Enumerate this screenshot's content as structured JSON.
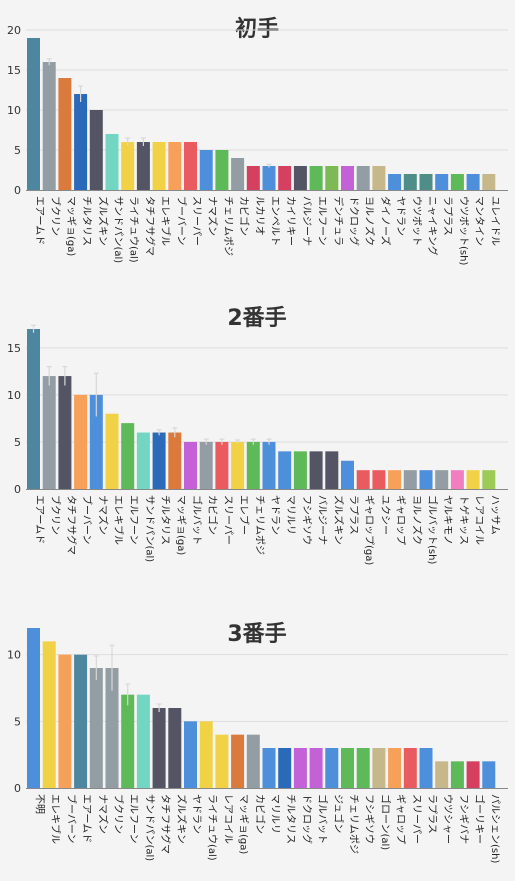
{
  "colors": {
    "teal": "#4e86a0",
    "gray": "#939da4",
    "orange": "#db7a3d",
    "blue": "#2b6ab8",
    "darkgray": "#535564",
    "mint": "#72d6c2",
    "yellow": "#f1d246",
    "peach": "#f7a05a",
    "red": "#ea5b5f",
    "skyblue": "#4d8fdb",
    "green": "#5eb958",
    "crimson": "#d53f60",
    "purple": "#c362d6",
    "khaki": "#c6b88a",
    "tealgreen": "#4f8e88",
    "pink": "#f27ec2",
    "lightgreen": "#9ccc57",
    "olive": "#7db954",
    "darkteal": "#3c7f99"
  },
  "chart_data": [
    {
      "type": "bar",
      "title": "初手",
      "ylim": [
        0,
        20
      ],
      "yticks": [
        0,
        5,
        10,
        15,
        20
      ],
      "categories": [
        "エアームド",
        "ブクリン",
        "マッギョ(ga)",
        "チルタリス",
        "ズルズキン",
        "サンドパン(al)",
        "ライチュウ(al)",
        "タチフサグマ",
        "エレキブル",
        "ブーバーン",
        "スリーパー",
        "ナマズン",
        "チェリムポジ",
        "カビゴン",
        "ルカリオ",
        "エンペルト",
        "カイリキー",
        "バルジーナ",
        "エルフーン",
        "デンチュラ",
        "ドクロッグ",
        "ヨルノズク",
        "ダイノーズ",
        "ヤドラン",
        "ウツボット",
        "ニャイキング",
        "ラプラス",
        "ウツボット(sh)",
        "マンタイン",
        "ユレイドル"
      ],
      "values": [
        19,
        16,
        14,
        12,
        10,
        7,
        6,
        6,
        6,
        6,
        6,
        5,
        5,
        4,
        3,
        3,
        3,
        3,
        3,
        3,
        3,
        3,
        3,
        2,
        2,
        2,
        2,
        2,
        2,
        2
      ],
      "errors": [
        0,
        0.4,
        0,
        1,
        0,
        0,
        0.5,
        0.5,
        0,
        0,
        0,
        0,
        0,
        0,
        0,
        0.2,
        0,
        0,
        0,
        0,
        0,
        0,
        0,
        0,
        0,
        0,
        0,
        0,
        0,
        0
      ],
      "colors": [
        "teal",
        "gray",
        "orange",
        "blue",
        "darkgray",
        "mint",
        "yellow",
        "darkgray",
        "yellow",
        "peach",
        "red",
        "skyblue",
        "green",
        "gray",
        "crimson",
        "skyblue",
        "crimson",
        "darkgray",
        "green",
        "olive",
        "purple",
        "gray",
        "khaki",
        "skyblue",
        "tealgreen",
        "tealgreen",
        "skyblue",
        "green",
        "skyblue",
        "khaki"
      ]
    },
    {
      "type": "bar",
      "title": "2番手",
      "ylim": [
        0,
        17
      ],
      "yticks": [
        0,
        5,
        10,
        15
      ],
      "categories": [
        "エアームド",
        "ブクリン",
        "タチフサグマ",
        "ブーバーン",
        "ナマズン",
        "エレキブル",
        "エルフーン",
        "サンドパン(al)",
        "チルタリス",
        "マッギョ(ga)",
        "ゴルバット",
        "カビゴン",
        "スリーパー",
        "エレブー",
        "チェリムポジ",
        "ヤドラン",
        "マリルリ",
        "フシギソウ",
        "バルジーナ",
        "ズルズキン",
        "ラプラス",
        "ギャロップ(ga)",
        "ユクシー",
        "ギャロップ",
        "ヨルノズク",
        "ゴルバット(sh)",
        "ヤルキモノ",
        "トゲキッス",
        "レアコイル",
        "ハッサム"
      ],
      "values": [
        17,
        12,
        12,
        10,
        10,
        8,
        7,
        6,
        6,
        6,
        5,
        5,
        5,
        5,
        5,
        5,
        4,
        4,
        4,
        4,
        3,
        2,
        2,
        2,
        2,
        2,
        2,
        2,
        2,
        2
      ],
      "errors": [
        0.4,
        1,
        1,
        0,
        2.3,
        0,
        0,
        0,
        0.3,
        0.5,
        0,
        0.3,
        0.3,
        0.2,
        0.3,
        0.3,
        0,
        0,
        0,
        0,
        0,
        0,
        0,
        0,
        0,
        0,
        0,
        0,
        0,
        0
      ],
      "colors": [
        "teal",
        "gray",
        "darkgray",
        "peach",
        "skyblue",
        "yellow",
        "green",
        "mint",
        "blue",
        "orange",
        "purple",
        "gray",
        "red",
        "yellow",
        "green",
        "skyblue",
        "skyblue",
        "green",
        "darkgray",
        "darkgray",
        "skyblue",
        "red",
        "red",
        "peach",
        "gray",
        "skyblue",
        "gray",
        "pink",
        "yellow",
        "lightgreen"
      ]
    },
    {
      "type": "bar",
      "title": "3番手",
      "ylim": [
        0,
        12
      ],
      "yticks": [
        0,
        5,
        10
      ],
      "categories": [
        "不明",
        "エレキブル",
        "ブーバーン",
        "エアームド",
        "ナマズン",
        "ブクリン",
        "エルフーン",
        "サンドパン(al)",
        "タチフサグマ",
        "ズルズキン",
        "ヤドラン",
        "ライチュウ(al)",
        "レアコイル",
        "マッギョ(ga)",
        "カビゴン",
        "マリルリ",
        "チルタリス",
        "ドクロッグ",
        "ゴルバット",
        "ジュゴン",
        "チェリムポジ",
        "フシギソウ",
        "ゴローン(al)",
        "ギャロップ",
        "スリーパー",
        "ラプラス",
        "ウツシャー",
        "フシギバナ",
        "ゴーリキー",
        "パルシェン(sh)"
      ],
      "values": [
        12,
        11,
        10,
        10,
        9,
        9,
        7,
        7,
        6,
        6,
        5,
        5,
        4,
        4,
        4,
        3,
        3,
        3,
        3,
        3,
        3,
        3,
        3,
        3,
        3,
        3,
        2,
        2,
        2,
        2
      ],
      "errors": [
        0,
        0,
        0,
        0,
        0.9,
        1.7,
        0.8,
        0,
        0.3,
        0,
        0,
        0,
        0,
        0,
        0,
        0,
        0,
        0,
        0,
        0,
        0,
        0,
        0,
        0,
        0,
        0,
        0,
        0,
        0,
        0
      ],
      "colors": [
        "skyblue",
        "yellow",
        "peach",
        "teal",
        "gray",
        "gray",
        "green",
        "mint",
        "darkgray",
        "darkgray",
        "skyblue",
        "yellow",
        "yellow",
        "orange",
        "gray",
        "skyblue",
        "blue",
        "purple",
        "purple",
        "skyblue",
        "green",
        "green",
        "khaki",
        "peach",
        "red",
        "skyblue",
        "khaki",
        "green",
        "crimson",
        "skyblue"
      ]
    }
  ]
}
